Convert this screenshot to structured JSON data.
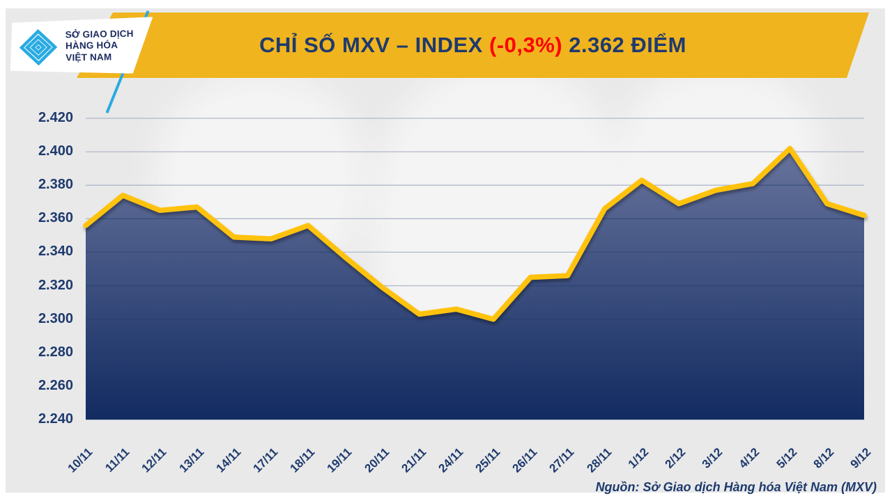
{
  "header": {
    "logo": {
      "line1": "SỞ GIAO DỊCH",
      "line2": "HÀNG HÓA",
      "line3": "VIỆT NAM",
      "tm": "™"
    },
    "title": {
      "part1": "CHỈ SỐ MXV – INDEX ",
      "part2": "(-0,3%)",
      "part3": " 2.362 ĐIỂM"
    }
  },
  "source_note": "Nguồn: Sở Giao dịch Hàng hóa Việt Nam (MXV)",
  "colors": {
    "banner_yellow": "#f0b41e",
    "line_gold": "#ffc20e",
    "navy_text": "#1e3a6e",
    "red_change": "#fe0000",
    "fill_top": "#68749d",
    "fill_bottom": "#122b61",
    "panel_gray": "#e9e9e9",
    "logo_cyan": "#29abe2",
    "gridline_light": "#afb8c9"
  },
  "chart_data": {
    "type": "area",
    "title": "CHỈ SỐ MXV – INDEX (-0,3%) 2.362 ĐIỂM",
    "categories": [
      "10/11",
      "11/11",
      "12/11",
      "13/11",
      "14/11",
      "17/11",
      "18/11",
      "19/11",
      "20/11",
      "21/11",
      "24/11",
      "25/11",
      "26/11",
      "27/11",
      "28/11",
      "1/12",
      "2/12",
      "3/12",
      "4/12",
      "5/12",
      "8/12",
      "9/12"
    ],
    "values": [
      2.356,
      2.374,
      2.365,
      2.367,
      2.349,
      2.348,
      2.356,
      2.337,
      2.319,
      2.303,
      2.306,
      2.3,
      2.325,
      2.326,
      2.366,
      2.383,
      2.369,
      2.377,
      2.381,
      2.402,
      2.369,
      2.362
    ],
    "latest_value_label": "2.362",
    "change_label": "-0,3%",
    "ylim": [
      2.24,
      2.42
    ],
    "y_ticks": [
      "2.420",
      "2.400",
      "2.380",
      "2.360",
      "2.340",
      "2.320",
      "2.300",
      "2.280",
      "2.260",
      "2.240"
    ],
    "xlabel": "",
    "ylabel": "",
    "grid": "horizontal",
    "legend": "none"
  }
}
